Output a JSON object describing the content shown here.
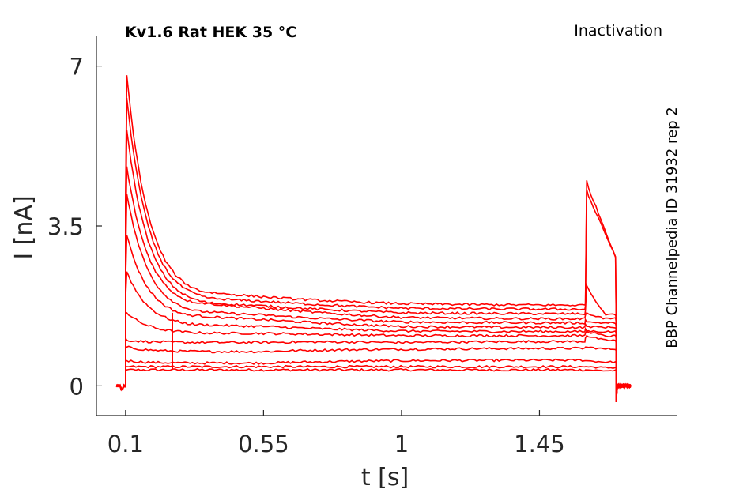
{
  "chart_data": {
    "type": "line",
    "title": "Kv1.6  Rat  HEK  35 °C",
    "condition_label": "Inactivation",
    "side_label": "BBP Channelpedia ID 31932 rep 2",
    "xlabel": "t [s]",
    "ylabel": "I [nA]",
    "xlim": [
      0.005,
      1.9
    ],
    "ylim": [
      -0.65,
      7.65
    ],
    "xticks": [
      0.1,
      0.55,
      1,
      1.45
    ],
    "xtick_labels": [
      "0.1",
      "0.55",
      "1",
      "1.45"
    ],
    "yticks": [
      0,
      3.5,
      7
    ],
    "ytick_labels": [
      "0",
      "3.5",
      "7"
    ],
    "grid": false,
    "line_color": "#ff0000",
    "protocol": {
      "baseline_start": 0.07,
      "step_on": 0.1,
      "step_off": 1.6,
      "tail_end": 1.7,
      "record_end": 1.75
    },
    "series": [
      {
        "values": [
          0.35,
          0.35,
          0.35,
          0.35,
          0.35,
          0.35
        ]
      },
      {
        "values": [
          0.42,
          0.42,
          0.42,
          0.42,
          0.42,
          0.42
        ]
      },
      {
        "values": [
          0.55,
          0.55,
          0.5,
          0.55,
          0.55,
          0.55
        ]
      },
      {
        "values": [
          0.85,
          0.85,
          0.75,
          0.8,
          0.85,
          0.85
        ]
      },
      {
        "values": [
          1.05,
          1.0,
          0.95,
          0.95,
          1.05,
          1.1
        ]
      },
      {
        "values": [
          1.6,
          1.6,
          1.15,
          1.1,
          1.15,
          1.2
        ]
      },
      {
        "values": [
          1.9,
          2.5,
          1.3,
          1.2,
          1.25,
          1.2
        ]
      },
      {
        "values": [
          2.3,
          3.3,
          1.45,
          1.3,
          1.35,
          1.3
        ]
      },
      {
        "values": [
          2.7,
          4.2,
          1.55,
          1.4,
          1.45,
          1.4
        ]
      },
      {
        "values": [
          3.2,
          4.8,
          1.7,
          1.5,
          1.55,
          1.6
        ]
      },
      {
        "values": [
          3.5,
          5.6,
          1.75,
          1.6,
          1.65,
          2.2
        ]
      },
      {
        "values": [
          3.8,
          6.3,
          1.85,
          1.7,
          1.75,
          4.3
        ]
      },
      {
        "values": [
          4.0,
          6.8,
          1.95,
          1.8,
          1.8,
          4.5
        ]
      }
    ],
    "series_value_keys": [
      "instant",
      "peak",
      "at_0.55",
      "at_1",
      "at_1.6",
      "tail_peak"
    ]
  }
}
